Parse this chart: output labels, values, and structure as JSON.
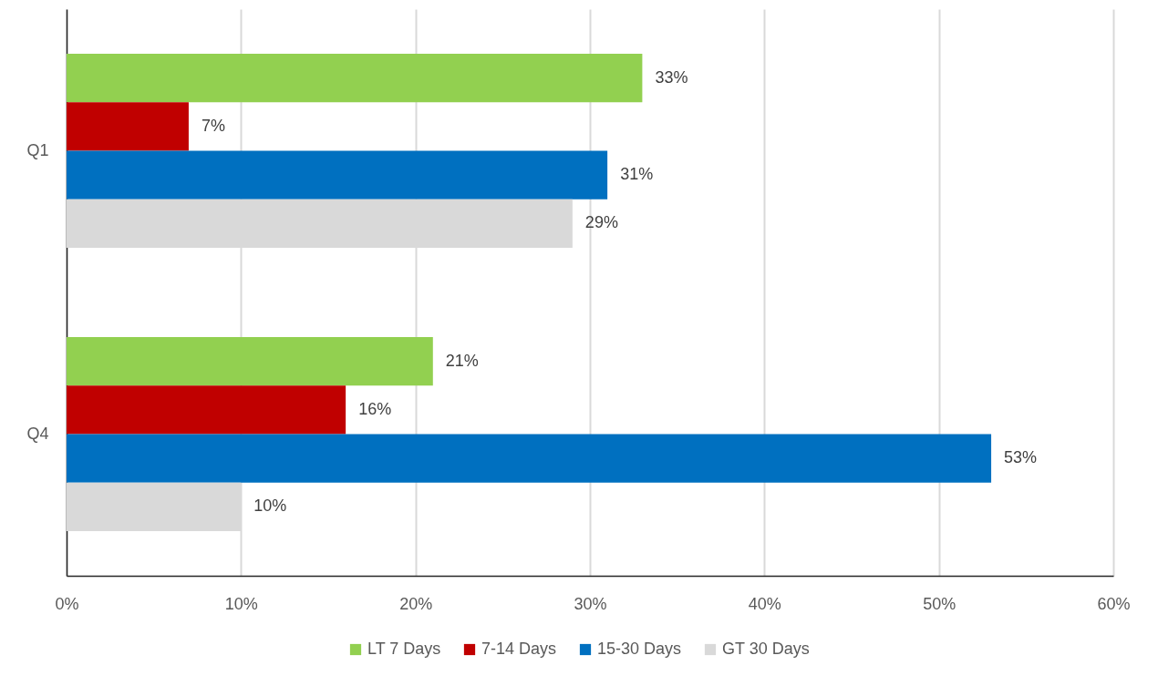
{
  "chart_data": {
    "type": "bar",
    "orientation": "horizontal",
    "categories": [
      "Q1",
      "Q4"
    ],
    "series": [
      {
        "name": "LT 7 Days",
        "color": "#92d050",
        "values": [
          33,
          21
        ],
        "value_labels": [
          "33%",
          "21%"
        ]
      },
      {
        "name": "7-14 Days",
        "color": "#c00000",
        "values": [
          7,
          16
        ],
        "value_labels": [
          "7%",
          "16%"
        ]
      },
      {
        "name": "15-30 Days",
        "color": "#0070c0",
        "values": [
          31,
          53
        ],
        "value_labels": [
          "31%",
          "53%"
        ]
      },
      {
        "name": "GT 30 Days",
        "color": "#d9d9d9",
        "values": [
          29,
          10
        ],
        "value_labels": [
          "29%",
          "10%"
        ]
      }
    ],
    "xlim": [
      0,
      60
    ],
    "xticks": [
      {
        "value": 0,
        "label": "0%"
      },
      {
        "value": 10,
        "label": "10%"
      },
      {
        "value": 20,
        "label": "20%"
      },
      {
        "value": 30,
        "label": "30%"
      },
      {
        "value": 40,
        "label": "40%"
      },
      {
        "value": 50,
        "label": "50%"
      },
      {
        "value": 60,
        "label": "60%"
      }
    ],
    "grid": "x",
    "legend": "bottom"
  }
}
